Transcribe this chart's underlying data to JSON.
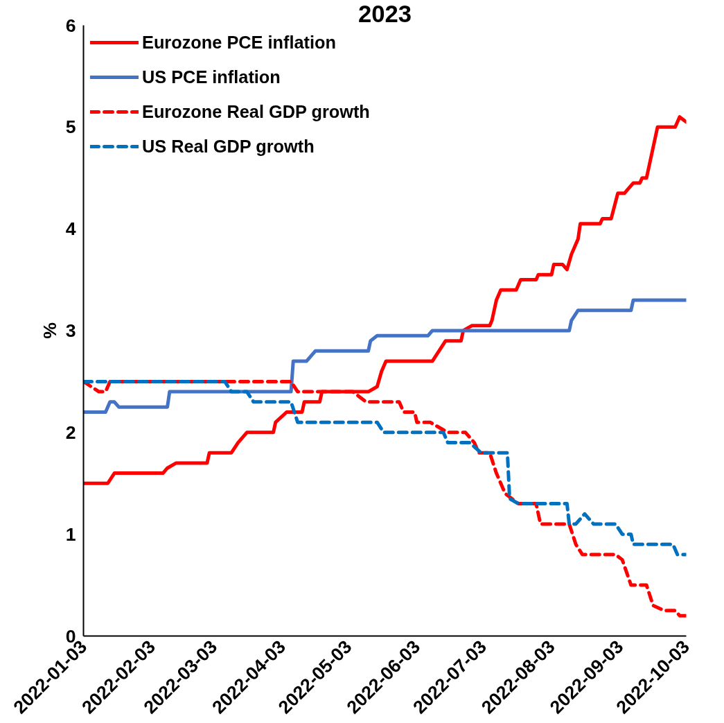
{
  "chart_data": {
    "type": "line",
    "title": "2023",
    "ylabel": "%",
    "xlim": [
      "2022-01-03",
      "2022-10-03"
    ],
    "xticks": [
      "2022-01-03",
      "2022-02-03",
      "2022-03-03",
      "2022-04-03",
      "2022-05-03",
      "2022-06-03",
      "2022-07-03",
      "2022-08-03",
      "2022-09-03",
      "2022-10-03"
    ],
    "ylim": [
      0,
      6
    ],
    "yticks": [
      0,
      1,
      2,
      3,
      4,
      5,
      6
    ],
    "grid": false,
    "legend": "top left",
    "marker": "none",
    "series": [
      {
        "name": "Eurozone PCE inflation",
        "color": "#ff0000",
        "line_style": "solid",
        "x": [
          "2022-01-03",
          "2022-01-14",
          "2022-01-17",
          "2022-02-08",
          "2022-02-10",
          "2022-02-14",
          "2022-02-28",
          "2022-03-01",
          "2022-03-11",
          "2022-03-14",
          "2022-03-18",
          "2022-03-30",
          "2022-03-31",
          "2022-04-05",
          "2022-04-12",
          "2022-04-13",
          "2022-04-20",
          "2022-04-21",
          "2022-05-12",
          "2022-05-16",
          "2022-05-18",
          "2022-05-20",
          "2022-06-10",
          "2022-06-13",
          "2022-06-16",
          "2022-06-23",
          "2022-06-24",
          "2022-06-28",
          "2022-07-06",
          "2022-07-07",
          "2022-07-09",
          "2022-07-11",
          "2022-07-18",
          "2022-07-20",
          "2022-07-27",
          "2022-07-28",
          "2022-08-03",
          "2022-08-04",
          "2022-08-08",
          "2022-08-10",
          "2022-08-12",
          "2022-08-15",
          "2022-08-16",
          "2022-08-25",
          "2022-08-26",
          "2022-08-30",
          "2022-09-02",
          "2022-09-05",
          "2022-09-07",
          "2022-09-09",
          "2022-09-12",
          "2022-09-13",
          "2022-09-15",
          "2022-09-18",
          "2022-09-19",
          "2022-09-20",
          "2022-09-28",
          "2022-09-30",
          "2022-10-03"
        ],
        "values": [
          1.5,
          1.5,
          1.6,
          1.6,
          1.65,
          1.7,
          1.7,
          1.8,
          1.8,
          1.9,
          2.0,
          2.0,
          2.1,
          2.2,
          2.2,
          2.3,
          2.3,
          2.4,
          2.4,
          2.45,
          2.6,
          2.7,
          2.7,
          2.8,
          2.9,
          2.9,
          3.0,
          3.05,
          3.05,
          3.1,
          3.3,
          3.4,
          3.4,
          3.5,
          3.5,
          3.55,
          3.55,
          3.65,
          3.65,
          3.6,
          3.75,
          3.9,
          4.05,
          4.05,
          4.1,
          4.1,
          4.35,
          4.35,
          4.4,
          4.45,
          4.45,
          4.5,
          4.5,
          4.8,
          4.9,
          5.0,
          5.0,
          5.1,
          5.05
        ]
      },
      {
        "name": "US PCE inflation",
        "color": "#4472c4",
        "line_style": "solid",
        "x": [
          "2022-01-03",
          "2022-01-13",
          "2022-01-15",
          "2022-01-17",
          "2022-01-19",
          "2022-02-10",
          "2022-02-11",
          "2022-04-07",
          "2022-04-08",
          "2022-04-14",
          "2022-04-18",
          "2022-05-12",
          "2022-05-13",
          "2022-05-16",
          "2022-06-08",
          "2022-06-10",
          "2022-08-11",
          "2022-08-12",
          "2022-08-15",
          "2022-09-08",
          "2022-09-09",
          "2022-10-03"
        ],
        "values": [
          2.2,
          2.2,
          2.3,
          2.3,
          2.25,
          2.25,
          2.4,
          2.4,
          2.7,
          2.7,
          2.8,
          2.8,
          2.9,
          2.95,
          2.95,
          3.0,
          3.0,
          3.1,
          3.2,
          3.2,
          3.3,
          3.3
        ]
      },
      {
        "name": "Eurozone Real GDP growth",
        "color": "#ff0000",
        "line_style": "dashed",
        "x": [
          "2022-01-03",
          "2022-01-10",
          "2022-01-13",
          "2022-01-15",
          "2022-04-07",
          "2022-04-10",
          "2022-05-05",
          "2022-05-08",
          "2022-05-11",
          "2022-05-26",
          "2022-05-28",
          "2022-06-02",
          "2022-06-03",
          "2022-06-09",
          "2022-06-13",
          "2022-06-17",
          "2022-06-25",
          "2022-06-29",
          "2022-07-01",
          "2022-07-06",
          "2022-07-09",
          "2022-07-13",
          "2022-07-19",
          "2022-07-27",
          "2022-07-29",
          "2022-08-11",
          "2022-08-14",
          "2022-08-17",
          "2022-09-01",
          "2022-09-04",
          "2022-09-08",
          "2022-09-15",
          "2022-09-18",
          "2022-09-23",
          "2022-09-28",
          "2022-09-30",
          "2022-10-03"
        ],
        "values": [
          2.5,
          2.4,
          2.4,
          2.5,
          2.5,
          2.4,
          2.4,
          2.35,
          2.3,
          2.3,
          2.2,
          2.2,
          2.1,
          2.1,
          2.05,
          2.0,
          2.0,
          1.9,
          1.8,
          1.8,
          1.6,
          1.4,
          1.3,
          1.3,
          1.1,
          1.1,
          0.9,
          0.8,
          0.8,
          0.75,
          0.5,
          0.5,
          0.3,
          0.25,
          0.25,
          0.2,
          0.2
        ]
      },
      {
        "name": "US Real GDP growth",
        "color": "#0070c0",
        "line_style": "dashed",
        "x": [
          "2022-01-03",
          "2022-03-08",
          "2022-03-11",
          "2022-03-18",
          "2022-03-21",
          "2022-04-07",
          "2022-04-10",
          "2022-05-16",
          "2022-05-19",
          "2022-06-15",
          "2022-06-17",
          "2022-06-27",
          "2022-07-02",
          "2022-07-14",
          "2022-07-15",
          "2022-07-19",
          "2022-08-10",
          "2022-08-11",
          "2022-08-14",
          "2022-08-18",
          "2022-08-22",
          "2022-09-01",
          "2022-09-04",
          "2022-09-08",
          "2022-09-09",
          "2022-09-27",
          "2022-09-29",
          "2022-10-03"
        ],
        "values": [
          2.5,
          2.5,
          2.4,
          2.4,
          2.3,
          2.3,
          2.1,
          2.1,
          2.0,
          2.0,
          1.9,
          1.9,
          1.8,
          1.8,
          1.35,
          1.3,
          1.3,
          1.1,
          1.1,
          1.2,
          1.1,
          1.1,
          1.0,
          1.0,
          0.9,
          0.9,
          0.8,
          0.8
        ]
      }
    ]
  }
}
